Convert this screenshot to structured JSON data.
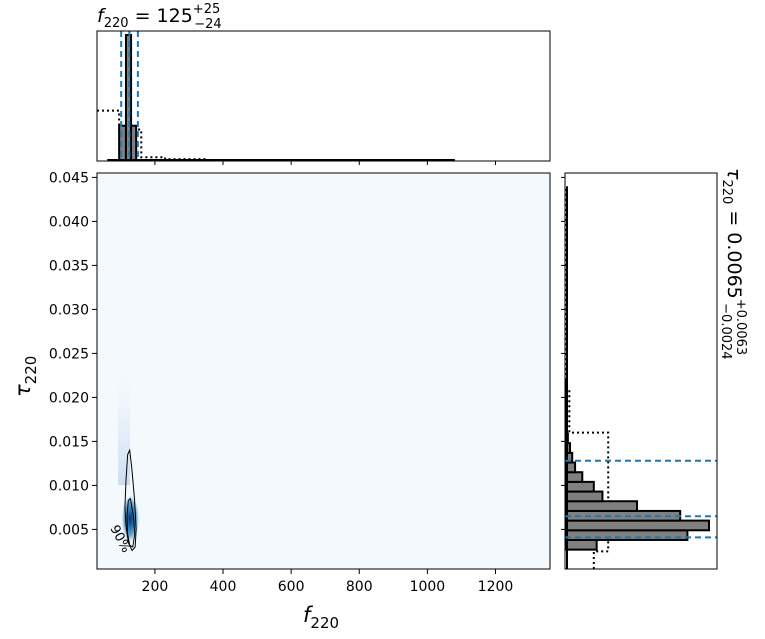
{
  "chart_data": [
    {
      "panel": "top-marginal",
      "type": "histogram",
      "title_main": "f",
      "title_sub": "220",
      "title_value": " = 125",
      "title_sup": "+25",
      "title_low": "−24",
      "xlim": [
        30,
        1360
      ],
      "bins": [
        [
          60,
          95,
          0.0
        ],
        [
          95,
          115,
          0.28
        ],
        [
          115,
          130,
          1.0
        ],
        [
          130,
          145,
          0.28
        ],
        [
          145,
          200,
          0.0
        ]
      ],
      "prior_bins": [
        [
          30,
          95,
          0.4
        ],
        [
          95,
          160,
          0.25
        ],
        [
          160,
          230,
          0.03
        ],
        [
          230,
          350,
          0.015
        ],
        [
          350,
          820,
          0.007
        ]
      ],
      "quantiles": [
        101,
        125,
        150
      ],
      "median": 125
    },
    {
      "panel": "joint",
      "type": "contour",
      "xlabel_main": "f",
      "xlabel_sub": "220",
      "ylabel_main": "τ",
      "ylabel_sub": "220",
      "xlim": [
        30,
        1360
      ],
      "ylim": [
        0.0005,
        0.0455
      ],
      "xticks": [
        "200",
        "400",
        "600",
        "800",
        "1000",
        "1200"
      ],
      "yticks": [
        "0.005",
        "0.010",
        "0.015",
        "0.020",
        "0.025",
        "0.030",
        "0.035",
        "0.040",
        "0.045"
      ],
      "contour_label": "90%",
      "contour_90": [
        [
          112,
          0.0075
        ],
        [
          115,
          0.0105
        ],
        [
          120,
          0.0135
        ],
        [
          126,
          0.014
        ],
        [
          132,
          0.012
        ],
        [
          140,
          0.0085
        ],
        [
          145,
          0.005
        ],
        [
          142,
          0.003
        ],
        [
          133,
          0.0026
        ],
        [
          122,
          0.0035
        ],
        [
          115,
          0.0055
        ]
      ],
      "contour_50": [
        [
          118,
          0.0065
        ],
        [
          122,
          0.0083
        ],
        [
          128,
          0.0085
        ],
        [
          137,
          0.0065
        ],
        [
          141,
          0.0045
        ],
        [
          135,
          0.003
        ],
        [
          126,
          0.0032
        ],
        [
          120,
          0.0045
        ]
      ],
      "density_core": [
        128,
        0.0062
      ]
    },
    {
      "panel": "right-marginal",
      "type": "histogram",
      "label_main": "τ",
      "label_sub": "220",
      "label_value": " = 0.0065",
      "label_sup": "+0.0063",
      "label_low": "−0.0024",
      "ylim": [
        0.0005,
        0.0455
      ],
      "bins": [
        [
          0.0005,
          0.0027,
          0.0
        ],
        [
          0.0027,
          0.0038,
          0.22
        ],
        [
          0.0038,
          0.0049,
          0.85
        ],
        [
          0.0049,
          0.006,
          1.0
        ],
        [
          0.006,
          0.0071,
          0.8
        ],
        [
          0.0071,
          0.0082,
          0.5
        ],
        [
          0.0082,
          0.0093,
          0.26
        ],
        [
          0.0093,
          0.0104,
          0.2
        ],
        [
          0.0104,
          0.0115,
          0.12
        ],
        [
          0.0115,
          0.0126,
          0.07
        ],
        [
          0.0126,
          0.0137,
          0.05
        ],
        [
          0.0137,
          0.0148,
          0.035
        ],
        [
          0.0148,
          0.0159,
          0.02
        ],
        [
          0.0159,
          0.017,
          0.012
        ],
        [
          0.017,
          0.019,
          0.008
        ],
        [
          0.019,
          0.022,
          0.004
        ]
      ],
      "prior_bins": [
        [
          0.0005,
          0.0025,
          0.2
        ],
        [
          0.0025,
          0.016,
          0.3
        ],
        [
          0.016,
          0.021,
          0.03
        ],
        [
          0.021,
          0.03,
          0.01
        ],
        [
          0.03,
          0.044,
          0.005
        ]
      ],
      "quantiles": [
        0.0041,
        0.0065,
        0.0128
      ],
      "median": 0.0065
    }
  ]
}
